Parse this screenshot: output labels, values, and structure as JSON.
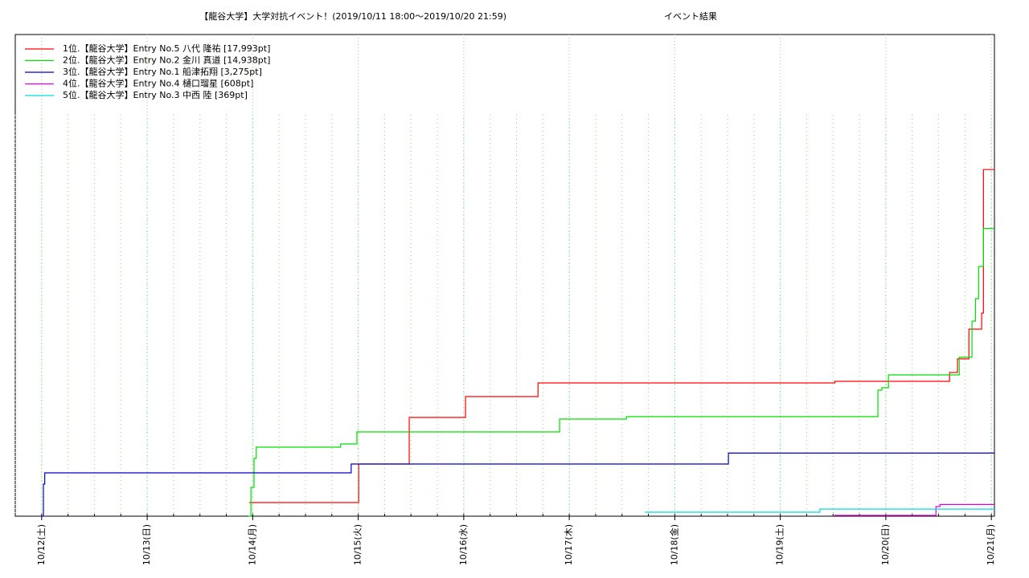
{
  "chart_data": {
    "type": "line",
    "step": "post",
    "title": "【龍谷大学】大学対抗イベント！(2019/10/11 18:00～2019/10/20 21:59)",
    "subtitle": "イベント結果",
    "xlim": [
      -6,
      216.7
    ],
    "ylim": [
      0,
      25000
    ],
    "grid": true,
    "minor_grid_step": 6,
    "legend": "upper-left",
    "xticks": [
      {
        "value": 0,
        "label": "10/12(土)"
      },
      {
        "value": 24,
        "label": "10/13(日)"
      },
      {
        "value": 48,
        "label": "10/14(月)"
      },
      {
        "value": 72,
        "label": "10/15(火)"
      },
      {
        "value": 96,
        "label": "10/16(水)"
      },
      {
        "value": 120,
        "label": "10/17(木)"
      },
      {
        "value": 144,
        "label": "10/18(金)"
      },
      {
        "value": 168,
        "label": "10/19(土)"
      },
      {
        "value": 192,
        "label": "10/20(日)"
      },
      {
        "value": 216,
        "label": "10/21(月)"
      }
    ],
    "series": [
      {
        "name": "1位.【龍谷大学】Entry No.5 八代 隆祐 [17,993pt]",
        "color": "#ff0000",
        "x": [
          47.2,
          72.1,
          83.6,
          96.4,
          112.9,
          180.4,
          206.5,
          208.3,
          210.9,
          213.8,
          214.2,
          216.7
        ],
        "values": [
          708,
          2708,
          5125,
          6208,
          6917,
          7000,
          7458,
          8167,
          9708,
          10542,
          17993,
          17993
        ]
      },
      {
        "name": "2位.【龍谷大学】Entry No.2 金川 真道 [14,938pt]",
        "color": "#00dd00",
        "x": [
          47.0,
          47.6,
          48.3,
          48.8,
          68.0,
          71.7,
          117.8,
          133.0,
          190.2,
          191.1,
          192.6,
          208.7,
          211.6,
          212.4,
          213.1,
          214.2,
          216.7
        ],
        "values": [
          0,
          1500,
          3000,
          3583,
          3750,
          4375,
          5042,
          5167,
          6542,
          6667,
          7333,
          8250,
          10125,
          11292,
          12958,
          14938,
          14938
        ]
      },
      {
        "name": "3位.【龍谷大学】Entry No.1 船津拓翔 [3,275pt]",
        "color": "#0000cc",
        "x": [
          0,
          0.4,
          0.7,
          70.4,
          156.2,
          216.7
        ],
        "values": [
          0,
          1667,
          2250,
          2708,
          3275,
          3275
        ]
      },
      {
        "name": "4位.【龍谷大学】Entry No.4 樋口瑠星 [608pt]",
        "color": "#dd00dd",
        "x": [
          180.3,
          203.4,
          204.3,
          216.7
        ],
        "values": [
          42,
          500,
          608,
          608
        ]
      },
      {
        "name": "5位.【龍谷大学】Entry No.3 中西 陸 [369pt]",
        "color": "#00dddd",
        "x": [
          137.2,
          177.0,
          216.7
        ],
        "values": [
          208,
          369,
          369
        ]
      }
    ]
  }
}
